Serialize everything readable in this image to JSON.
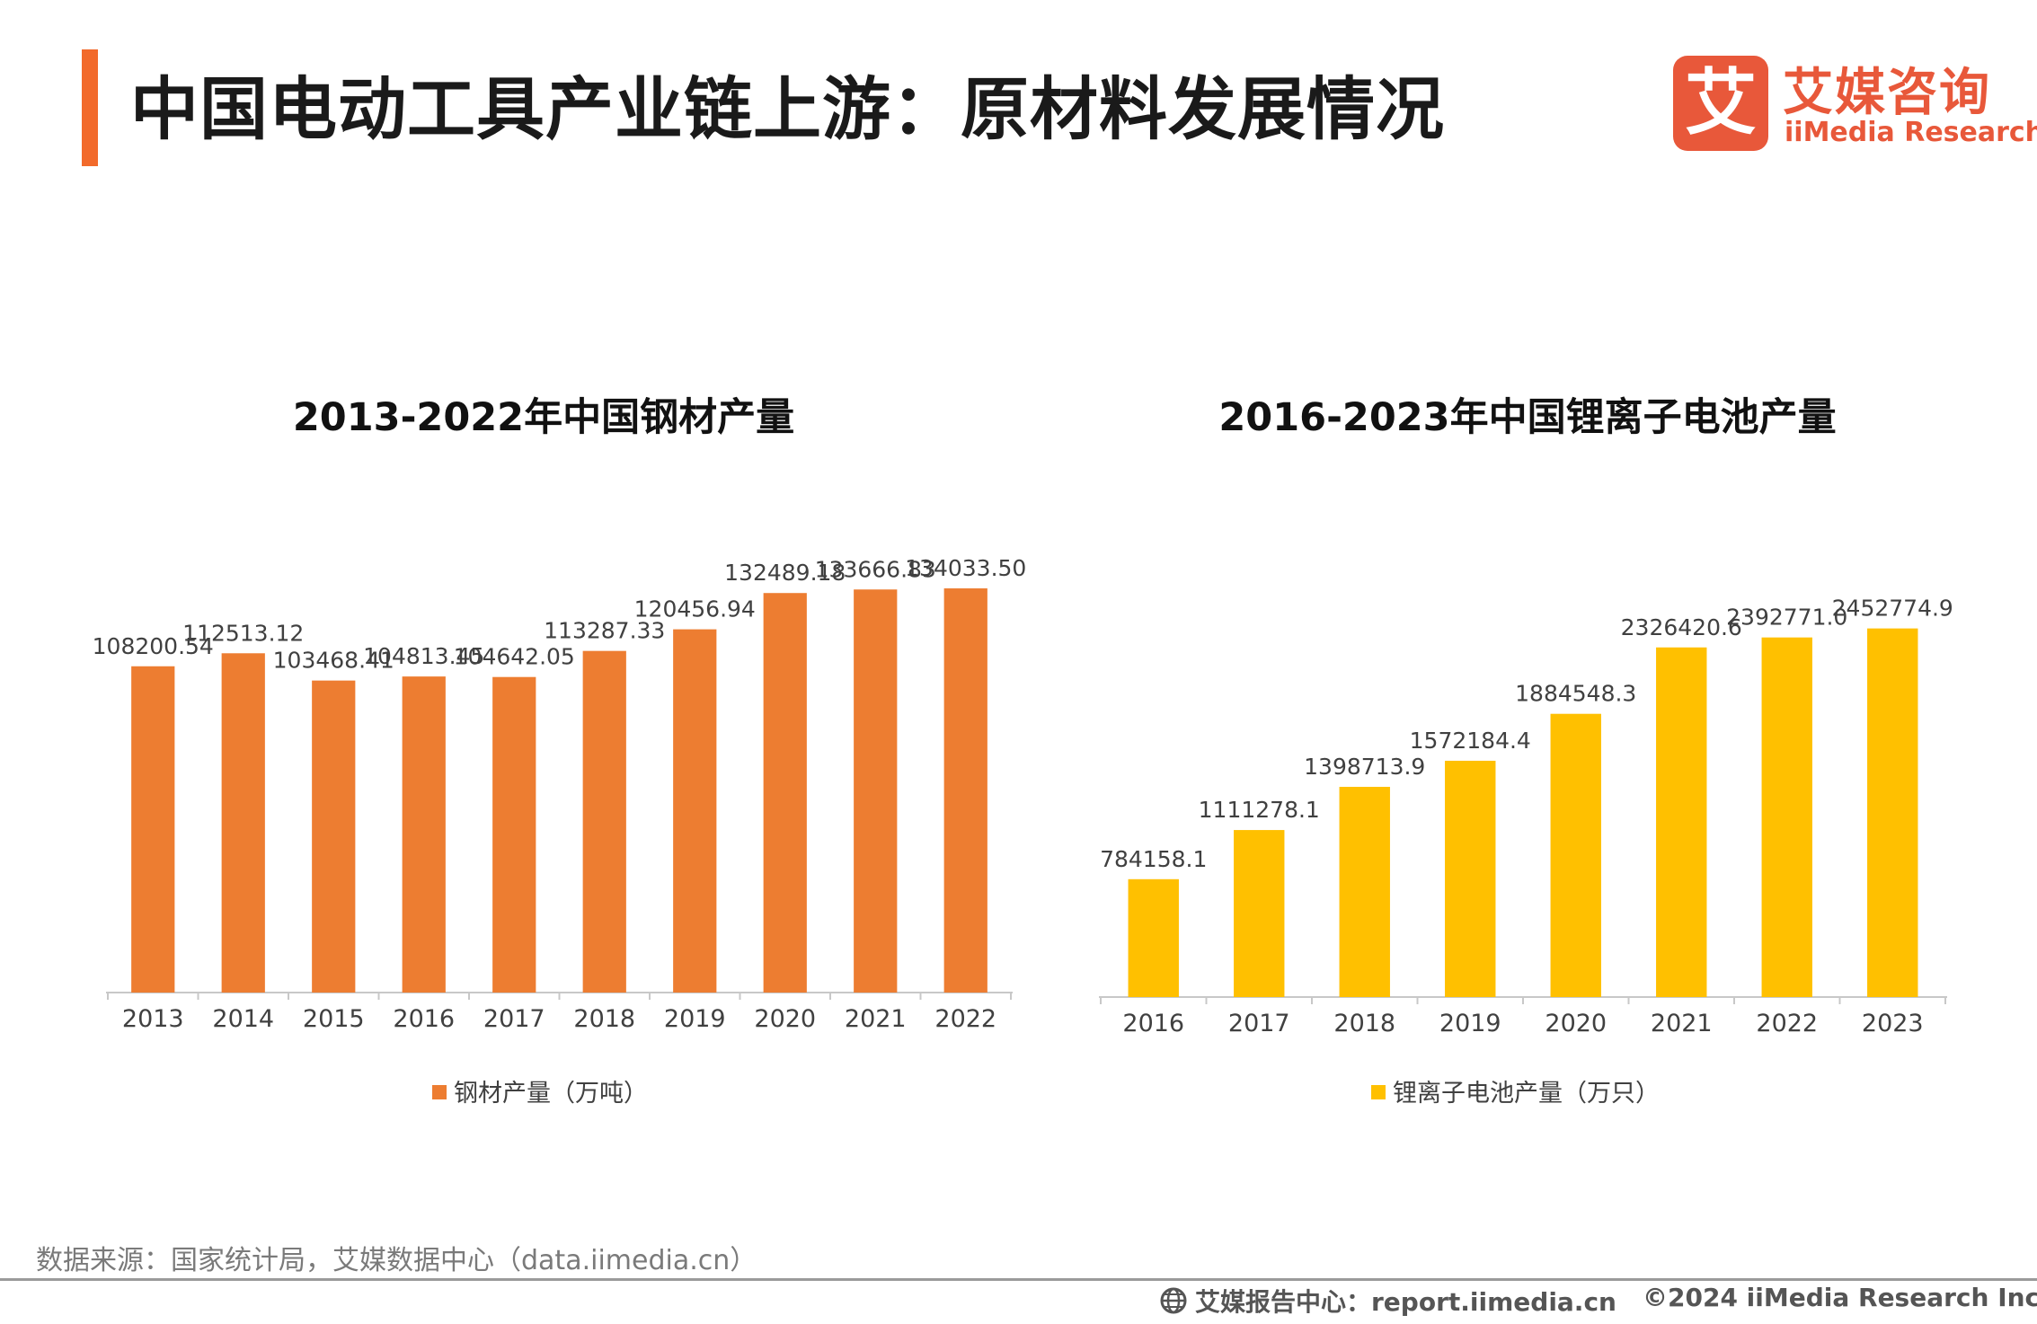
{
  "page": {
    "title": "中国电动工具产业链上游：原材料发展情况",
    "accent_color": "#f26a2b"
  },
  "logo": {
    "mark": "艾",
    "cn": "艾媒咨询",
    "en": "iiMedia Research",
    "color": "#e8583a"
  },
  "chart_data": [
    {
      "type": "bar",
      "title": "2013-2022年中国钢材产量",
      "categories": [
        "2013",
        "2014",
        "2015",
        "2016",
        "2017",
        "2018",
        "2019",
        "2020",
        "2021",
        "2022"
      ],
      "series": [
        {
          "name": "钢材产量（万吨）",
          "values": [
            108200.54,
            112513.12,
            103468.41,
            104813.45,
            104642.05,
            113287.33,
            120456.94,
            132489.18,
            133666.83,
            134033.5
          ],
          "labels": [
            "108200.54",
            "112513.12",
            "103468.41",
            "104813.45",
            "104642.05",
            "113287.33",
            "120456.94",
            "132489.18",
            "133666.83",
            "134033.50"
          ],
          "color": "#ed7d31"
        }
      ],
      "ylim": [
        0,
        140000
      ],
      "xlabel": "",
      "ylabel": "",
      "legend": "bottom"
    },
    {
      "type": "bar",
      "title": "2016-2023年中国锂离子电池产量",
      "categories": [
        "2016",
        "2017",
        "2018",
        "2019",
        "2020",
        "2021",
        "2022",
        "2023"
      ],
      "series": [
        {
          "name": "锂离子电池产量（万只）",
          "values": [
            784158.1,
            1111278.1,
            1398713.9,
            1572184.4,
            1884548.3,
            2326420.6,
            2392771.0,
            2452774.9
          ],
          "labels": [
            "784158.1",
            "1111278.1",
            "1398713.9",
            "1572184.4",
            "1884548.3",
            "2326420.6",
            "2392771.0",
            "2452774.9"
          ],
          "color": "#ffc000"
        }
      ],
      "ylim": [
        0,
        2600000
      ],
      "xlabel": "",
      "ylabel": "",
      "legend": "bottom"
    }
  ],
  "footer": {
    "source": "数据来源：国家统计局，艾媒数据中心（data.iimedia.cn）",
    "report": "艾媒报告中心：report.iimedia.cn",
    "copyright": "©2024  iiMedia Research  Inc"
  }
}
